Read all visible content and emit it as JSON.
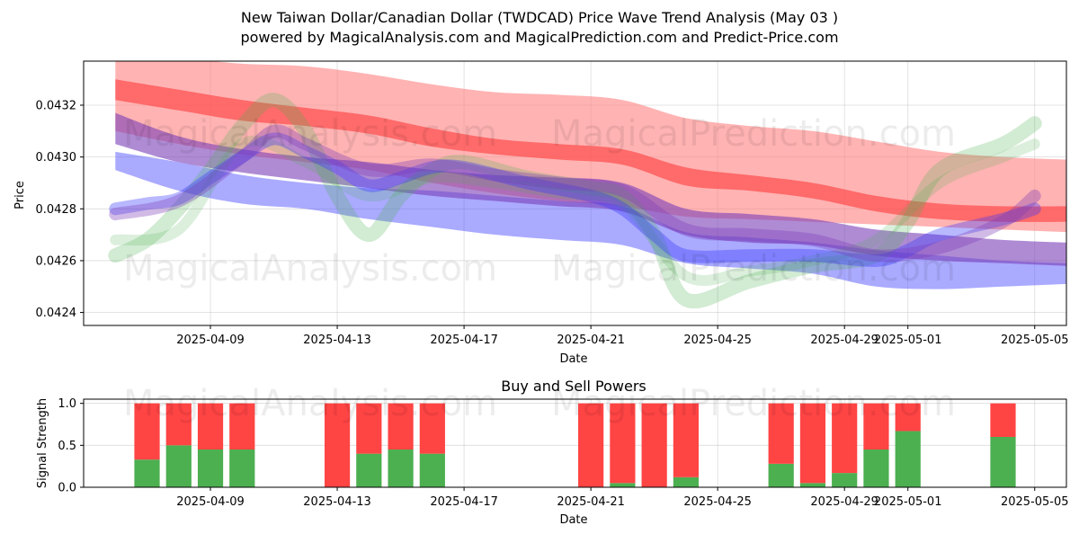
{
  "title_line1": "New Taiwan Dollar/Canadian Dollar (TWDCAD) Price Wave Trend Analysis (May 03 )",
  "title_line2": "powered by MagicalAnalysis.com and MagicalPrediction.com and Predict-Price.com",
  "watermarks": [
    "MagicalAnalysis.com",
    "MagicalPrediction.com"
  ],
  "colors": {
    "green": "#4caf50",
    "red": "#ff4444",
    "blue": "#3333ff",
    "purple": "#7a3db8",
    "pink": "#ff8080"
  },
  "chart_data": [
    {
      "type": "line",
      "title": "",
      "xlabel": "Date",
      "ylabel": "Price",
      "xlim": [
        "2025-04-05",
        "2025-05-06"
      ],
      "ylim": [
        0.04235,
        0.04337
      ],
      "yticks": [
        0.0424,
        0.0426,
        0.0428,
        0.043,
        0.0432
      ],
      "ytick_labels": [
        "0.0424",
        "0.0426",
        "0.0428",
        "0.0430",
        "0.0432"
      ],
      "xticks": [
        "2025-04-09",
        "2025-04-13",
        "2025-04-17",
        "2025-04-21",
        "2025-04-25",
        "2025-04-29",
        "2025-05-01",
        "2025-05-05"
      ],
      "xtick_labels": [
        "2025-04-09",
        "2025-04-13",
        "2025-04-17",
        "2025-04-21",
        "2025-04-25",
        "2025-04-29",
        "2025-05-01",
        "2025-05-05"
      ],
      "grid": true,
      "dates": [
        "2025-04-06",
        "2025-04-08",
        "2025-04-10",
        "2025-04-12",
        "2025-04-14",
        "2025-04-16",
        "2025-04-18",
        "2025-04-20",
        "2025-04-22",
        "2025-04-24",
        "2025-04-26",
        "2025-04-28",
        "2025-04-30",
        "2025-05-02",
        "2025-05-04",
        "2025-05-06"
      ],
      "bands": [
        {
          "name": "red-wide",
          "color": "#ff8080",
          "opacity": 0.6,
          "upper": [
            0.04338,
            0.04338,
            0.04336,
            0.04335,
            0.04332,
            0.04328,
            0.04325,
            0.04324,
            0.04322,
            0.04315,
            0.04312,
            0.0431,
            0.04306,
            0.04302,
            0.043,
            0.04299
          ],
          "lower": [
            0.0431,
            0.04305,
            0.04301,
            0.04298,
            0.04295,
            0.0429,
            0.04286,
            0.04283,
            0.04281,
            0.04277,
            0.04276,
            0.04275,
            0.04274,
            0.04273,
            0.04272,
            0.04271
          ]
        },
        {
          "name": "red-narrow",
          "color": "#ff4444",
          "opacity": 0.65,
          "upper": [
            0.0433,
            0.04326,
            0.04322,
            0.04319,
            0.04316,
            0.04311,
            0.04307,
            0.04305,
            0.04303,
            0.04296,
            0.04293,
            0.0429,
            0.04285,
            0.04282,
            0.04281,
            0.04281
          ],
          "lower": [
            0.04322,
            0.04318,
            0.04314,
            0.04312,
            0.04309,
            0.04304,
            0.04301,
            0.04299,
            0.04297,
            0.04289,
            0.04287,
            0.04284,
            0.04279,
            0.04276,
            0.04275,
            0.04275
          ]
        },
        {
          "name": "blue-wide",
          "color": "#5555ff",
          "opacity": 0.5,
          "upper": [
            0.04302,
            0.04298,
            0.04293,
            0.0429,
            0.04288,
            0.04287,
            0.04285,
            0.04283,
            0.04281,
            0.04271,
            0.04269,
            0.04267,
            0.04264,
            0.04262,
            0.0426,
            0.04259
          ],
          "lower": [
            0.04295,
            0.04287,
            0.04282,
            0.0428,
            0.04276,
            0.04273,
            0.0427,
            0.04268,
            0.04266,
            0.04259,
            0.04257,
            0.04255,
            0.0425,
            0.04249,
            0.0425,
            0.04251
          ]
        },
        {
          "name": "purple",
          "color": "#7a3db8",
          "opacity": 0.6,
          "upper": [
            0.04317,
            0.04308,
            0.04303,
            0.043,
            0.04298,
            0.04295,
            0.04293,
            0.04292,
            0.0429,
            0.0428,
            0.04278,
            0.04276,
            0.04272,
            0.0427,
            0.04268,
            0.04267
          ],
          "lower": [
            0.04305,
            0.04298,
            0.04294,
            0.04291,
            0.04288,
            0.04285,
            0.04283,
            0.04281,
            0.04279,
            0.0427,
            0.04267,
            0.04266,
            0.04262,
            0.0426,
            0.04259,
            0.04258
          ]
        }
      ],
      "series": [
        {
          "name": "green-wave",
          "color": "#4caf50",
          "opacity": 0.25,
          "width": 16,
          "x": [
            "2025-04-06",
            "2025-04-07",
            "2025-04-08",
            "2025-04-09",
            "2025-04-10",
            "2025-04-11",
            "2025-04-12",
            "2025-04-13",
            "2025-04-14",
            "2025-04-15",
            "2025-04-16",
            "2025-04-17",
            "2025-04-19",
            "2025-04-21",
            "2025-04-22",
            "2025-04-23",
            "2025-04-24",
            "2025-04-26",
            "2025-04-28",
            "2025-04-30",
            "2025-05-01",
            "2025-05-02",
            "2025-05-04",
            "2025-05-05"
          ],
          "y": [
            0.04262,
            0.04268,
            0.0428,
            0.04295,
            0.04312,
            0.04322,
            0.0431,
            0.04285,
            0.0427,
            0.04285,
            0.04295,
            0.04298,
            0.04292,
            0.04288,
            0.04285,
            0.0427,
            0.04245,
            0.04252,
            0.04258,
            0.04262,
            0.04275,
            0.04295,
            0.04305,
            0.04313
          ]
        },
        {
          "name": "green-wave-2",
          "color": "#4caf50",
          "opacity": 0.2,
          "width": 12,
          "x": [
            "2025-04-06",
            "2025-04-08",
            "2025-04-10",
            "2025-04-12",
            "2025-04-14",
            "2025-04-16",
            "2025-04-18",
            "2025-04-20",
            "2025-04-22",
            "2025-04-24",
            "2025-04-26",
            "2025-04-28",
            "2025-04-30",
            "2025-05-02",
            "2025-05-04",
            "2025-05-05"
          ],
          "y": [
            0.04268,
            0.04272,
            0.04305,
            0.04298,
            0.04285,
            0.04292,
            0.0429,
            0.04286,
            0.04282,
            0.04254,
            0.04256,
            0.0426,
            0.04268,
            0.0429,
            0.043,
            0.04305
          ]
        },
        {
          "name": "blue-wave",
          "color": "#3333ff",
          "opacity": 0.35,
          "width": 14,
          "x": [
            "2025-04-06",
            "2025-04-07",
            "2025-04-08",
            "2025-04-09",
            "2025-04-10",
            "2025-04-11",
            "2025-04-12",
            "2025-04-13",
            "2025-04-14",
            "2025-04-15",
            "2025-04-16",
            "2025-04-17",
            "2025-04-19",
            "2025-04-21",
            "2025-04-22",
            "2025-04-23",
            "2025-04-24",
            "2025-04-26",
            "2025-04-28",
            "2025-04-30",
            "2025-05-01",
            "2025-05-02",
            "2025-05-04",
            "2025-05-05"
          ],
          "y": [
            0.0428,
            0.04282,
            0.04284,
            0.04292,
            0.043,
            0.04307,
            0.04302,
            0.04296,
            0.04289,
            0.04292,
            0.04296,
            0.04296,
            0.0429,
            0.04285,
            0.0428,
            0.0427,
            0.04262,
            0.04262,
            0.04262,
            0.0426,
            0.04264,
            0.0427,
            0.04276,
            0.0428
          ]
        },
        {
          "name": "purple-wave",
          "color": "#7a3db8",
          "opacity": 0.35,
          "width": 14,
          "x": [
            "2025-04-06",
            "2025-04-08",
            "2025-04-10",
            "2025-04-11",
            "2025-04-12",
            "2025-04-14",
            "2025-04-16",
            "2025-04-18",
            "2025-04-20",
            "2025-04-22",
            "2025-04-24",
            "2025-04-26",
            "2025-04-28",
            "2025-04-30",
            "2025-05-02",
            "2025-05-04",
            "2025-05-05"
          ],
          "y": [
            0.04278,
            0.04283,
            0.043,
            0.0431,
            0.04305,
            0.04295,
            0.04297,
            0.04293,
            0.0429,
            0.04287,
            0.04272,
            0.0427,
            0.04268,
            0.04262,
            0.04265,
            0.04275,
            0.04285
          ]
        }
      ]
    },
    {
      "type": "bar",
      "title": "Buy and Sell Powers",
      "xlabel": "Date",
      "ylabel": "Signal Strength",
      "xlim": [
        "2025-04-05",
        "2025-05-06"
      ],
      "ylim": [
        0,
        1.05
      ],
      "yticks": [
        0.0,
        0.5,
        1.0
      ],
      "ytick_labels": [
        "0.0",
        "0.5",
        "1.0"
      ],
      "xticks": [
        "2025-04-09",
        "2025-04-13",
        "2025-04-17",
        "2025-04-21",
        "2025-04-25",
        "2025-04-29",
        "2025-05-01",
        "2025-05-05"
      ],
      "xtick_labels": [
        "2025-04-09",
        "2025-04-13",
        "2025-04-17",
        "2025-04-21",
        "2025-04-25",
        "2025-04-29",
        "2025-05-01",
        "2025-05-05"
      ],
      "grid": true,
      "categories": [
        "2025-04-07",
        "2025-04-08",
        "2025-04-09",
        "2025-04-10",
        "2025-04-13",
        "2025-04-14",
        "2025-04-15",
        "2025-04-16",
        "2025-04-21",
        "2025-04-22",
        "2025-04-23",
        "2025-04-24",
        "2025-04-27",
        "2025-04-28",
        "2025-04-29",
        "2025-04-30",
        "2025-05-01",
        "2025-05-04"
      ],
      "series": [
        {
          "name": "Buy",
          "color": "#4caf50",
          "values": [
            0.33,
            0.5,
            0.45,
            0.45,
            0.0,
            0.4,
            0.45,
            0.4,
            0.0,
            0.05,
            0.0,
            0.12,
            0.28,
            0.05,
            0.17,
            0.45,
            0.67,
            0.6
          ]
        },
        {
          "name": "Sell",
          "color": "#ff4444",
          "values": [
            0.67,
            0.5,
            0.55,
            0.55,
            1.0,
            0.6,
            0.55,
            0.6,
            1.0,
            0.95,
            1.0,
            0.88,
            0.72,
            0.95,
            0.83,
            0.55,
            0.33,
            0.4
          ]
        }
      ]
    }
  ]
}
